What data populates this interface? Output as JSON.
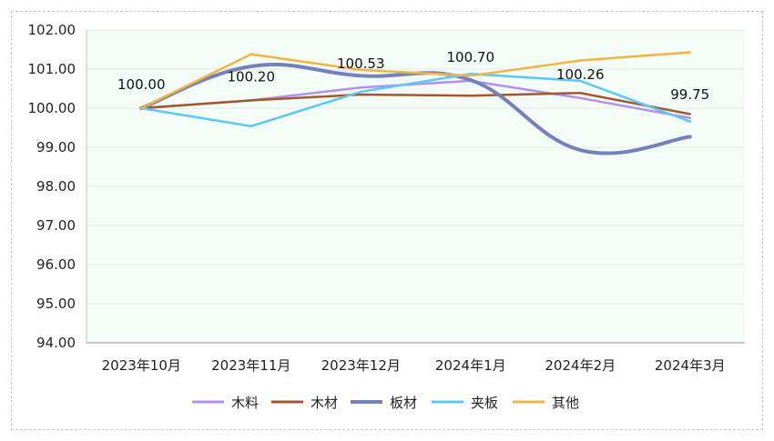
{
  "chart_data": {
    "type": "line",
    "categories": [
      "2023年10月",
      "2023年11月",
      "2023年12月",
      "2024年1月",
      "2024年2月",
      "2024年3月"
    ],
    "ylim": [
      94.0,
      102.0
    ],
    "yticks": [
      "94.00",
      "95.00",
      "96.00",
      "97.00",
      "98.00",
      "99.00",
      "100.00",
      "101.00",
      "102.00"
    ],
    "grid": true,
    "legend_position": "bottom",
    "series": [
      {
        "name": "木料",
        "color": "#b48ef0",
        "width": 2.5,
        "smooth": false,
        "values": [
          100.0,
          100.2,
          100.53,
          100.7,
          100.26,
          99.75
        ]
      },
      {
        "name": "木材",
        "color": "#a0582c",
        "width": 2.5,
        "smooth": false,
        "values": [
          100.0,
          100.2,
          100.35,
          100.32,
          100.39,
          99.85
        ]
      },
      {
        "name": "板材",
        "color": "#7581bd",
        "width": 4,
        "smooth": true,
        "values": [
          100.0,
          101.07,
          100.83,
          100.72,
          98.93,
          99.27
        ]
      },
      {
        "name": "夹板",
        "color": "#5bc8f5",
        "width": 2.5,
        "smooth": false,
        "values": [
          100.0,
          99.54,
          100.42,
          100.88,
          100.7,
          99.66
        ]
      },
      {
        "name": "其他",
        "color": "#f2b440",
        "width": 2.5,
        "smooth": false,
        "values": [
          100.0,
          101.38,
          100.98,
          100.83,
          101.22,
          101.43
        ]
      }
    ],
    "data_labels": [
      "100.00",
      "100.20",
      "100.53",
      "100.70",
      "100.26",
      "99.75"
    ]
  }
}
